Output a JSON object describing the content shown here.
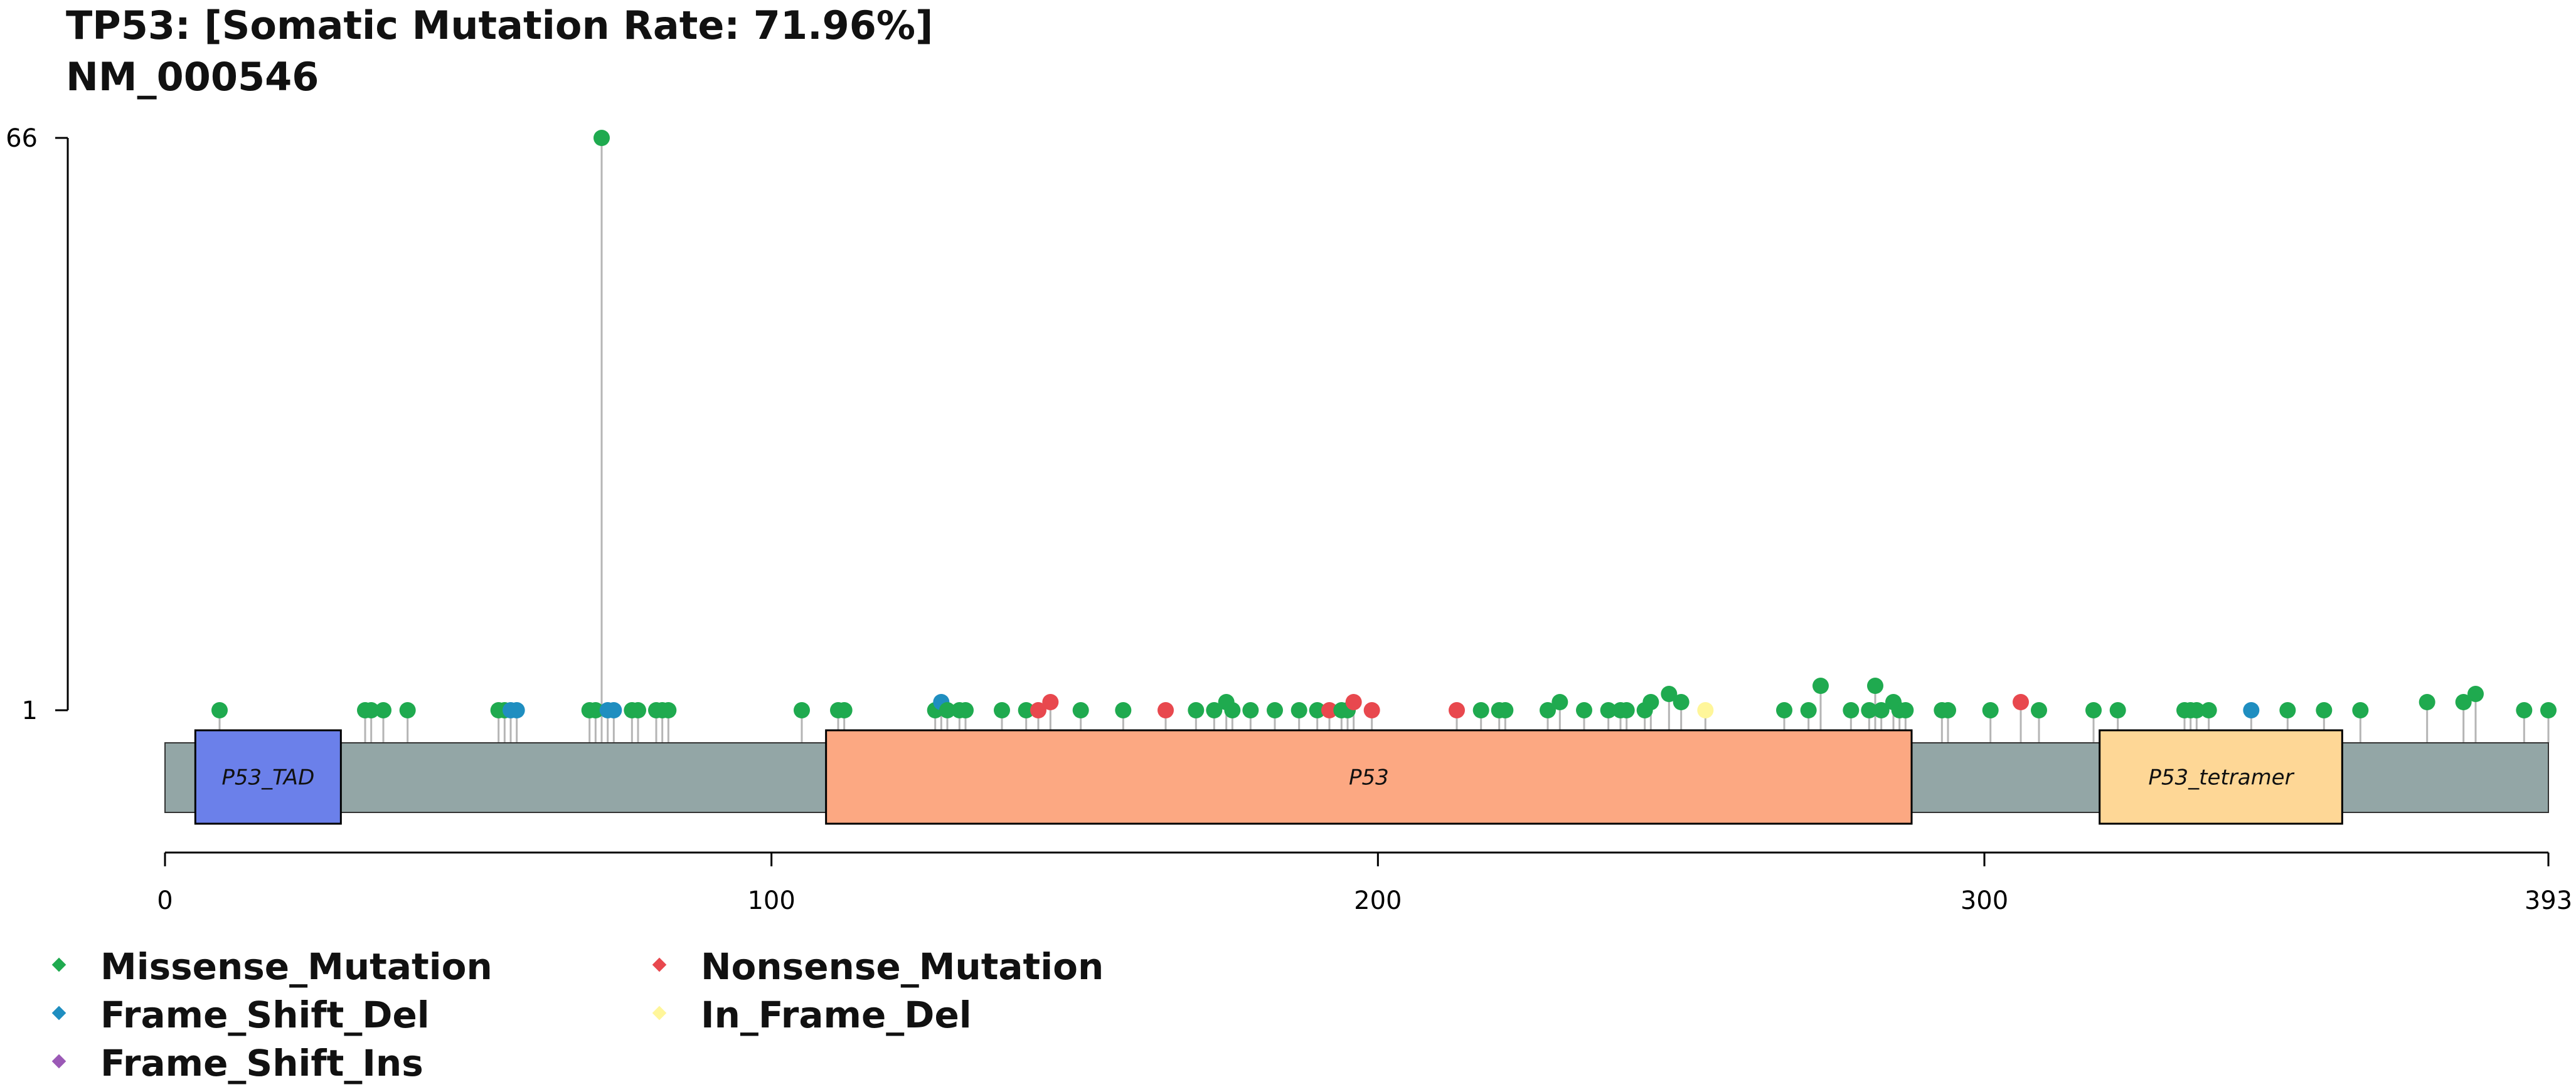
{
  "title": {
    "line1": "TP53: [Somatic Mutation Rate: 71.96%]",
    "line2": "NM_000546"
  },
  "chart_data": {
    "type": "lollipop",
    "protein_length": 393,
    "x_ticks": [
      0,
      100,
      200,
      300,
      393
    ],
    "y_ticks": [
      1,
      66
    ],
    "domains": [
      {
        "name": "P53_TAD",
        "start": 5,
        "end": 29,
        "color": "#6B80EA"
      },
      {
        "name": "P53",
        "start": 109,
        "end": 288,
        "color": "#FCA882"
      },
      {
        "name": "P53_tetramer",
        "start": 319,
        "end": 359,
        "color": "#FED796"
      }
    ],
    "backbone_color": "#93A6A6",
    "legend": [
      {
        "label": "Missense_Mutation",
        "color": "#1FAA4F"
      },
      {
        "label": "Nonsense_Mutation",
        "color": "#E8484E"
      },
      {
        "label": "Frame_Shift_Del",
        "color": "#1F8EC0"
      },
      {
        "label": "In_Frame_Del",
        "color": "#FFF69A"
      },
      {
        "label": "Frame_Shift_Ins",
        "color": "#9B59B6"
      }
    ],
    "mutations": [
      {
        "pos": 9,
        "type": "Missense_Mutation",
        "level": 0
      },
      {
        "pos": 33,
        "type": "Missense_Mutation",
        "level": 0
      },
      {
        "pos": 34,
        "type": "Missense_Mutation",
        "level": 0
      },
      {
        "pos": 36,
        "type": "Missense_Mutation",
        "level": 0
      },
      {
        "pos": 40,
        "type": "Missense_Mutation",
        "level": 0
      },
      {
        "pos": 55,
        "type": "Missense_Mutation",
        "level": 0
      },
      {
        "pos": 56,
        "type": "Missense_Mutation",
        "level": 0
      },
      {
        "pos": 57,
        "type": "Frame_Shift_Del",
        "level": 0
      },
      {
        "pos": 58,
        "type": "Frame_Shift_Del",
        "level": 0
      },
      {
        "pos": 70,
        "type": "Missense_Mutation",
        "level": 0
      },
      {
        "pos": 71,
        "type": "Missense_Mutation",
        "level": 0
      },
      {
        "pos": 72,
        "type": "Missense_Mutation",
        "level": 66
      },
      {
        "pos": 73,
        "type": "Frame_Shift_Del",
        "level": 0
      },
      {
        "pos": 74,
        "type": "Frame_Shift_Del",
        "level": 0
      },
      {
        "pos": 77,
        "type": "Missense_Mutation",
        "level": 0
      },
      {
        "pos": 78,
        "type": "Missense_Mutation",
        "level": 0
      },
      {
        "pos": 81,
        "type": "Missense_Mutation",
        "level": 0
      },
      {
        "pos": 82,
        "type": "Missense_Mutation",
        "level": 0
      },
      {
        "pos": 83,
        "type": "Missense_Mutation",
        "level": 0
      },
      {
        "pos": 105,
        "type": "Missense_Mutation",
        "level": 0
      },
      {
        "pos": 111,
        "type": "Missense_Mutation",
        "level": 0
      },
      {
        "pos": 112,
        "type": "Missense_Mutation",
        "level": 0
      },
      {
        "pos": 127,
        "type": "Missense_Mutation",
        "level": 0
      },
      {
        "pos": 128,
        "type": "Frame_Shift_Del",
        "level": 1
      },
      {
        "pos": 129,
        "type": "Missense_Mutation",
        "level": 0
      },
      {
        "pos": 131,
        "type": "Missense_Mutation",
        "level": 0
      },
      {
        "pos": 132,
        "type": "Missense_Mutation",
        "level": 0
      },
      {
        "pos": 138,
        "type": "Missense_Mutation",
        "level": 0
      },
      {
        "pos": 142,
        "type": "Missense_Mutation",
        "level": 0
      },
      {
        "pos": 144,
        "type": "Nonsense_Mutation",
        "level": 0
      },
      {
        "pos": 146,
        "type": "Nonsense_Mutation",
        "level": 1
      },
      {
        "pos": 151,
        "type": "Missense_Mutation",
        "level": 0
      },
      {
        "pos": 158,
        "type": "Missense_Mutation",
        "level": 0
      },
      {
        "pos": 165,
        "type": "Nonsense_Mutation",
        "level": 0
      },
      {
        "pos": 170,
        "type": "Missense_Mutation",
        "level": 0
      },
      {
        "pos": 173,
        "type": "Missense_Mutation",
        "level": 0
      },
      {
        "pos": 175,
        "type": "Missense_Mutation",
        "level": 1
      },
      {
        "pos": 176,
        "type": "Missense_Mutation",
        "level": 0
      },
      {
        "pos": 179,
        "type": "Missense_Mutation",
        "level": 0
      },
      {
        "pos": 183,
        "type": "Missense_Mutation",
        "level": 0
      },
      {
        "pos": 187,
        "type": "Missense_Mutation",
        "level": 0
      },
      {
        "pos": 190,
        "type": "Missense_Mutation",
        "level": 0
      },
      {
        "pos": 192,
        "type": "Nonsense_Mutation",
        "level": 0
      },
      {
        "pos": 194,
        "type": "Missense_Mutation",
        "level": 0
      },
      {
        "pos": 195,
        "type": "Missense_Mutation",
        "level": 0
      },
      {
        "pos": 196,
        "type": "Nonsense_Mutation",
        "level": 1
      },
      {
        "pos": 199,
        "type": "Nonsense_Mutation",
        "level": 0
      },
      {
        "pos": 213,
        "type": "Nonsense_Mutation",
        "level": 0
      },
      {
        "pos": 217,
        "type": "Missense_Mutation",
        "level": 0
      },
      {
        "pos": 220,
        "type": "Missense_Mutation",
        "level": 0
      },
      {
        "pos": 221,
        "type": "Missense_Mutation",
        "level": 0
      },
      {
        "pos": 228,
        "type": "Missense_Mutation",
        "level": 0
      },
      {
        "pos": 230,
        "type": "Missense_Mutation",
        "level": 1
      },
      {
        "pos": 234,
        "type": "Missense_Mutation",
        "level": 0
      },
      {
        "pos": 238,
        "type": "Missense_Mutation",
        "level": 0
      },
      {
        "pos": 240,
        "type": "Missense_Mutation",
        "level": 0
      },
      {
        "pos": 241,
        "type": "Missense_Mutation",
        "level": 0
      },
      {
        "pos": 244,
        "type": "Missense_Mutation",
        "level": 0
      },
      {
        "pos": 245,
        "type": "Missense_Mutation",
        "level": 1
      },
      {
        "pos": 248,
        "type": "Missense_Mutation",
        "level": 2
      },
      {
        "pos": 250,
        "type": "Missense_Mutation",
        "level": 1
      },
      {
        "pos": 254,
        "type": "In_Frame_Del",
        "level": 0
      },
      {
        "pos": 267,
        "type": "Missense_Mutation",
        "level": 0
      },
      {
        "pos": 271,
        "type": "Missense_Mutation",
        "level": 0
      },
      {
        "pos": 273,
        "type": "Missense_Mutation",
        "level": 3
      },
      {
        "pos": 278,
        "type": "Missense_Mutation",
        "level": 0
      },
      {
        "pos": 281,
        "type": "Missense_Mutation",
        "level": 0
      },
      {
        "pos": 282,
        "type": "Missense_Mutation",
        "level": 3
      },
      {
        "pos": 283,
        "type": "Missense_Mutation",
        "level": 0
      },
      {
        "pos": 285,
        "type": "Missense_Mutation",
        "level": 1
      },
      {
        "pos": 286,
        "type": "Missense_Mutation",
        "level": 0
      },
      {
        "pos": 287,
        "type": "Missense_Mutation",
        "level": 0
      },
      {
        "pos": 293,
        "type": "Missense_Mutation",
        "level": 0
      },
      {
        "pos": 294,
        "type": "Missense_Mutation",
        "level": 0
      },
      {
        "pos": 301,
        "type": "Missense_Mutation",
        "level": 0
      },
      {
        "pos": 306,
        "type": "Nonsense_Mutation",
        "level": 1
      },
      {
        "pos": 309,
        "type": "Missense_Mutation",
        "level": 0
      },
      {
        "pos": 318,
        "type": "Missense_Mutation",
        "level": 0
      },
      {
        "pos": 322,
        "type": "Missense_Mutation",
        "level": 0
      },
      {
        "pos": 333,
        "type": "Missense_Mutation",
        "level": 0
      },
      {
        "pos": 334,
        "type": "Missense_Mutation",
        "level": 0
      },
      {
        "pos": 335,
        "type": "Missense_Mutation",
        "level": 0
      },
      {
        "pos": 337,
        "type": "Missense_Mutation",
        "level": 0
      },
      {
        "pos": 344,
        "type": "Frame_Shift_Del",
        "level": 0
      },
      {
        "pos": 350,
        "type": "Missense_Mutation",
        "level": 0
      },
      {
        "pos": 356,
        "type": "Missense_Mutation",
        "level": 0
      },
      {
        "pos": 362,
        "type": "Missense_Mutation",
        "level": 0
      },
      {
        "pos": 373,
        "type": "Missense_Mutation",
        "level": 1
      },
      {
        "pos": 379,
        "type": "Missense_Mutation",
        "level": 1
      },
      {
        "pos": 381,
        "type": "Missense_Mutation",
        "level": 2
      },
      {
        "pos": 389,
        "type": "Missense_Mutation",
        "level": 0
      },
      {
        "pos": 393,
        "type": "Missense_Mutation",
        "level": 0
      }
    ]
  }
}
